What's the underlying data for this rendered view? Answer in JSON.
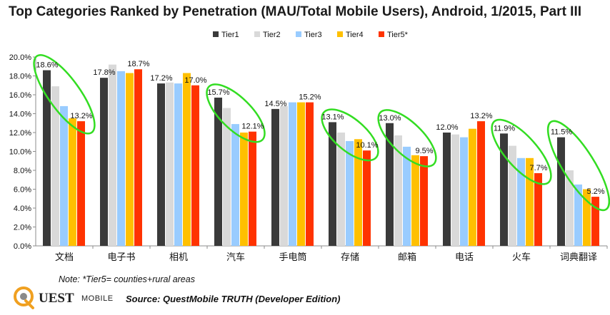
{
  "chart_data": {
    "type": "bar",
    "title": "Top Categories Ranked by Penetration (MAU/Total Mobile Users), Android, 1/2015, Part III",
    "categories": [
      "文档",
      "电子书",
      "相机",
      "汽车",
      "手电筒",
      "存储",
      "邮箱",
      "电话",
      "火车",
      "词典翻译"
    ],
    "series": [
      {
        "name": "Tier1",
        "color": "#3a3a3a",
        "values": [
          18.6,
          17.8,
          17.2,
          15.7,
          14.5,
          13.1,
          13.0,
          12.0,
          11.9,
          11.5
        ]
      },
      {
        "name": "Tier2",
        "color": "#d9d9d9",
        "values": [
          16.9,
          19.2,
          17.3,
          14.6,
          14.8,
          12.0,
          11.7,
          11.8,
          10.6,
          8.0
        ]
      },
      {
        "name": "Tier3",
        "color": "#99ccff",
        "values": [
          14.8,
          18.5,
          17.2,
          12.9,
          15.2,
          11.1,
          10.5,
          11.5,
          9.3,
          6.5
        ]
      },
      {
        "name": "Tier4",
        "color": "#ffc000",
        "values": [
          13.5,
          18.3,
          18.3,
          12.0,
          15.2,
          11.3,
          9.6,
          12.4,
          9.3,
          6.0
        ]
      },
      {
        "name": "Tier5*",
        "color": "#ff3300",
        "values": [
          13.2,
          18.7,
          17.0,
          12.1,
          15.2,
          10.1,
          9.5,
          13.2,
          7.7,
          5.2
        ]
      }
    ],
    "data_labels": [
      {
        "category": 0,
        "series": 0,
        "text": "18.6%"
      },
      {
        "category": 0,
        "series": 4,
        "text": "13.2%"
      },
      {
        "category": 1,
        "series": 0,
        "text": "17.8%"
      },
      {
        "category": 1,
        "series": 4,
        "text": "18.7%"
      },
      {
        "category": 2,
        "series": 0,
        "text": "17.2%"
      },
      {
        "category": 2,
        "series": 4,
        "text": "17.0%"
      },
      {
        "category": 3,
        "series": 0,
        "text": "15.7%"
      },
      {
        "category": 3,
        "series": 4,
        "text": "12.1%"
      },
      {
        "category": 4,
        "series": 0,
        "text": "14.5%"
      },
      {
        "category": 4,
        "series": 4,
        "text": "15.2%"
      },
      {
        "category": 5,
        "series": 0,
        "text": "13.1%"
      },
      {
        "category": 5,
        "series": 4,
        "text": "10.1%"
      },
      {
        "category": 6,
        "series": 0,
        "text": "13.0%"
      },
      {
        "category": 6,
        "series": 4,
        "text": "9.5%"
      },
      {
        "category": 7,
        "series": 0,
        "text": "12.0%"
      },
      {
        "category": 7,
        "series": 4,
        "text": "13.2%"
      },
      {
        "category": 8,
        "series": 0,
        "text": "11.9%"
      },
      {
        "category": 8,
        "series": 4,
        "text": "7.7%"
      },
      {
        "category": 9,
        "series": 0,
        "text": "11.5%"
      },
      {
        "category": 9,
        "series": 4,
        "text": "5.2%"
      }
    ],
    "highlighted_categories": [
      0,
      3,
      5,
      6,
      8,
      9
    ],
    "highlight_color": "#33dd22",
    "yticks": [
      "0.0%",
      "2.0%",
      "4.0%",
      "6.0%",
      "8.0%",
      "10.0%",
      "12.0%",
      "14.0%",
      "16.0%",
      "18.0%",
      "20.0%"
    ],
    "ylim": [
      0,
      20
    ],
    "xlabel": "",
    "ylabel": "",
    "legend_position": "top-center",
    "grid": false
  },
  "note": "Note: *Tier5= counties+rural areas",
  "source": "Source: QuestMobile TRUTH (Developer Edition)",
  "logo": {
    "letters": "UEST",
    "word": "MOBILE",
    "accent": "#f0a020"
  }
}
